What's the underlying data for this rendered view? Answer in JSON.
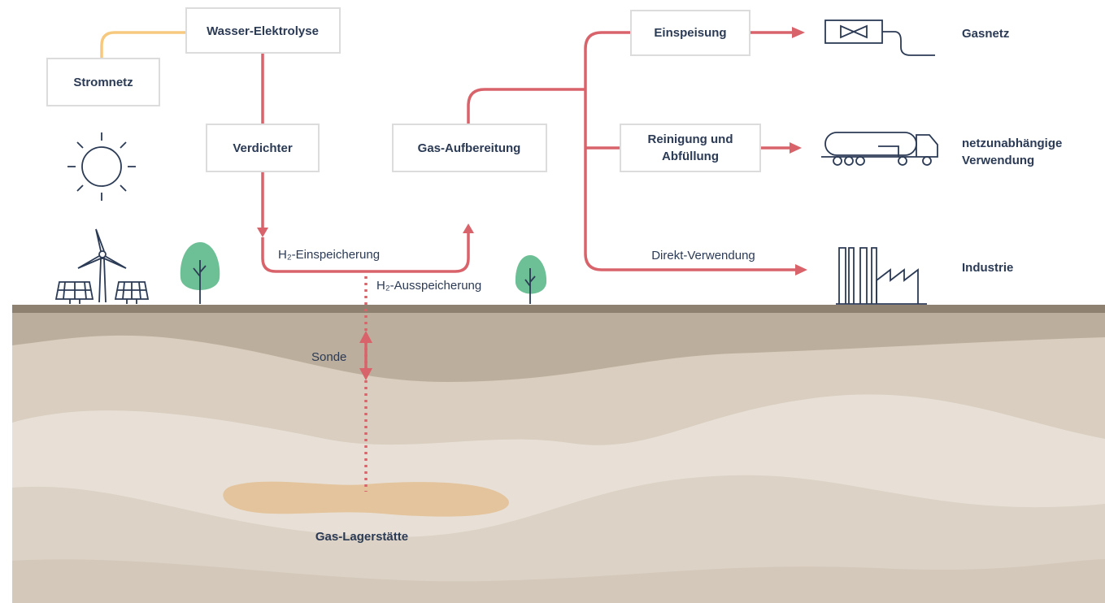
{
  "nodes": [
    {
      "lines": [
        "Wasser-Elektrolyse"
      ]
    },
    {
      "lines": [
        "Stromnetz"
      ]
    },
    {
      "lines": [
        "Verdichter"
      ]
    },
    {
      "lines": [
        "Gas-Aufbereitung"
      ]
    },
    {
      "lines": [
        "Einspeisung"
      ]
    },
    {
      "lines": [
        "Reinigung und",
        "Abfüllung"
      ]
    }
  ],
  "destinations": [
    {
      "lines": [
        "Gasnetz"
      ]
    },
    {
      "lines": [
        "netzunabhängige",
        "Verwendung"
      ]
    },
    {
      "lines": [
        "Industrie"
      ]
    }
  ],
  "annotations": [
    "Direkt-Verwendung",
    "H₂-Einspeicherung",
    "H₂-Ausspeicherung",
    "Sonde"
  ],
  "reservoir": "Gas-Lagerstätte"
}
